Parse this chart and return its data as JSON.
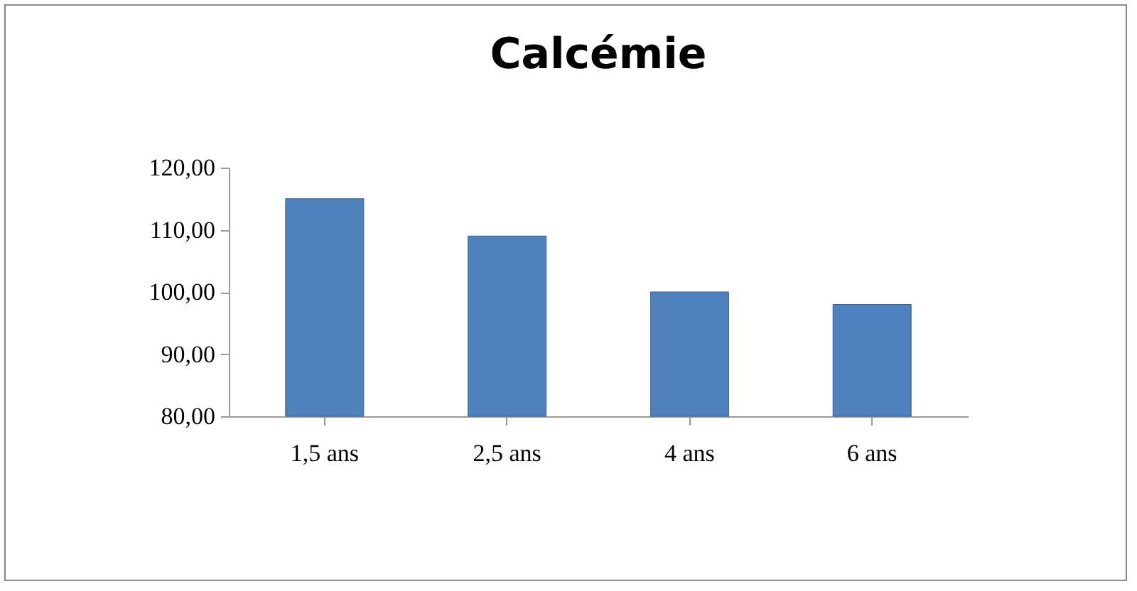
{
  "chart_data": {
    "type": "bar",
    "title": "Calcémie",
    "categories": [
      "1,5 ans",
      "2,5 ans",
      "4 ans",
      "6 ans"
    ],
    "values": [
      115,
      109,
      100,
      98
    ],
    "color": "#4f81bd",
    "ylim": [
      80,
      120
    ],
    "yticks": [
      {
        "value": 80,
        "label": "80,00"
      },
      {
        "value": 90,
        "label": "90,00"
      },
      {
        "value": 100,
        "label": "100,00"
      },
      {
        "value": 110,
        "label": "110,00"
      },
      {
        "value": 120,
        "label": "120,00"
      }
    ],
    "grid": false
  }
}
